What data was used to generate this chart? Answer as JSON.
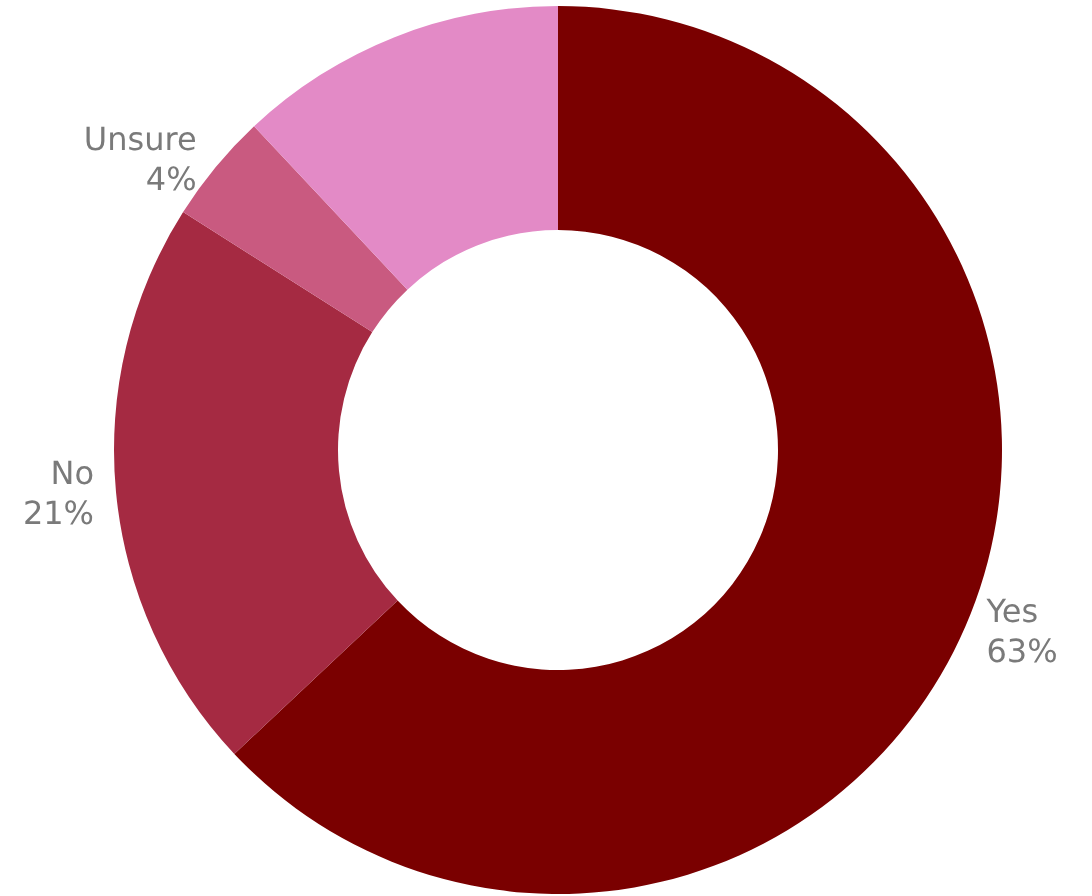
{
  "chart_data": {
    "type": "donut",
    "categories": [
      "Yes",
      "No",
      "Unsure",
      null
    ],
    "values": [
      63,
      21,
      4,
      12
    ],
    "colors": [
      "#7a0000",
      "#a52a42",
      "#c95a80",
      "#e38ac6"
    ],
    "value_labels": [
      "63%",
      "21%",
      "4%",
      null
    ],
    "legend": false
  }
}
